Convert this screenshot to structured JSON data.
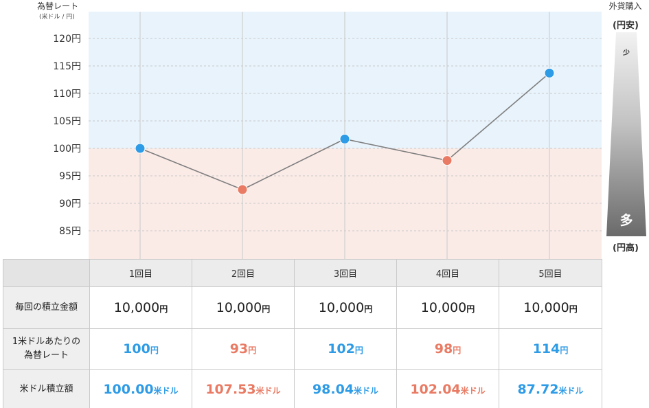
{
  "chart_data": {
    "type": "line",
    "ylabel": "為替レート",
    "yunit": "(米ドル / 円)",
    "ylim": [
      80,
      125
    ],
    "yticks": [
      "120円",
      "115円",
      "110円",
      "105円",
      "100円",
      "95円",
      "90円",
      "85円"
    ],
    "ytick_values": [
      120,
      115,
      110,
      105,
      100,
      95,
      90,
      85
    ],
    "categories": [
      "1回目",
      "2回目",
      "3回目",
      "4回目",
      "5回目"
    ],
    "values": [
      100,
      92.5,
      101.7,
      97.8,
      113.7
    ],
    "baseline": 100,
    "grid": true,
    "colors": {
      "above": "#2e9be6",
      "below": "#e97a63",
      "bg_above": "#e8f3fc",
      "bg_below": "#fbebe7",
      "line": "#7f7f7f"
    }
  },
  "gauge": {
    "title": "外貨購入",
    "top_label": "(円安)",
    "bottom_label": "(円高)",
    "low_label": "少",
    "high_label": "多"
  },
  "table": {
    "headers": [
      "1回目",
      "2回目",
      "3回目",
      "4回目",
      "5回目"
    ],
    "rows": [
      {
        "label": "毎回の積立金額",
        "cells": [
          {
            "num": "10,000",
            "unit": "円",
            "color": "dark"
          },
          {
            "num": "10,000",
            "unit": "円",
            "color": "dark"
          },
          {
            "num": "10,000",
            "unit": "円",
            "color": "dark"
          },
          {
            "num": "10,000",
            "unit": "円",
            "color": "dark"
          },
          {
            "num": "10,000",
            "unit": "円",
            "color": "dark"
          }
        ]
      },
      {
        "label_line1": "1米ドルあたりの",
        "label_line2": "為替レート",
        "cells": [
          {
            "num": "100",
            "unit": "円",
            "color": "blue"
          },
          {
            "num": "93",
            "unit": "円",
            "color": "red"
          },
          {
            "num": "102",
            "unit": "円",
            "color": "blue"
          },
          {
            "num": "98",
            "unit": "円",
            "color": "red"
          },
          {
            "num": "114",
            "unit": "円",
            "color": "blue"
          }
        ]
      },
      {
        "label": "米ドル積立額",
        "cells": [
          {
            "num": "100.00",
            "unit": "米ドル",
            "color": "blue"
          },
          {
            "num": "107.53",
            "unit": "米ドル",
            "color": "red"
          },
          {
            "num": "98.04",
            "unit": "米ドル",
            "color": "blue"
          },
          {
            "num": "102.04",
            "unit": "米ドル",
            "color": "red"
          },
          {
            "num": "87.72",
            "unit": "米ドル",
            "color": "blue"
          }
        ]
      }
    ]
  }
}
